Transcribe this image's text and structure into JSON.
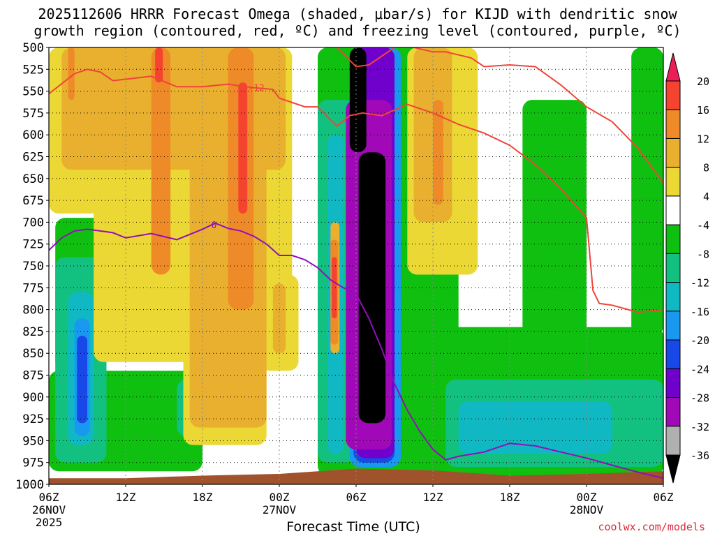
{
  "chart_data": {
    "type": "heatmap",
    "title_line1": "2025112606 HRRR Forecast Omega (shaded, μbar/s) for KIJD with dendritic snow",
    "title_line2": "growth region (contoured, red, ºC) and freezing level (contoured, purple, ºC)",
    "xlabel": "Forecast Time (UTC)",
    "credit": "coolwx.com/models",
    "y_levels": [
      "500",
      "525",
      "550",
      "575",
      "600",
      "625",
      "650",
      "675",
      "700",
      "725",
      "750",
      "775",
      "800",
      "825",
      "850",
      "875",
      "900",
      "925",
      "950",
      "975",
      "1000"
    ],
    "y_values": [
      500,
      525,
      550,
      575,
      600,
      625,
      650,
      675,
      700,
      725,
      750,
      775,
      800,
      825,
      850,
      875,
      900,
      925,
      950,
      975,
      1000
    ],
    "ylim": [
      500,
      1000
    ],
    "xlim": [
      0,
      48
    ],
    "x_ticks": [
      {
        "hour": 0,
        "label": "06Z",
        "sub1": "26NOV",
        "sub2": "2025"
      },
      {
        "hour": 6,
        "label": "12Z",
        "sub1": "",
        "sub2": ""
      },
      {
        "hour": 12,
        "label": "18Z",
        "sub1": "",
        "sub2": ""
      },
      {
        "hour": 18,
        "label": "00Z",
        "sub1": "27NOV",
        "sub2": ""
      },
      {
        "hour": 24,
        "label": "06Z",
        "sub1": "",
        "sub2": ""
      },
      {
        "hour": 30,
        "label": "12Z",
        "sub1": "",
        "sub2": ""
      },
      {
        "hour": 36,
        "label": "18Z",
        "sub1": "",
        "sub2": ""
      },
      {
        "hour": 42,
        "label": "00Z",
        "sub1": "28NOV",
        "sub2": ""
      },
      {
        "hour": 48,
        "label": "06Z",
        "sub1": "",
        "sub2": ""
      }
    ],
    "colorbar": {
      "labels": [
        "20",
        "16",
        "12",
        "8",
        "4",
        "-4",
        "-8",
        "-12",
        "-16",
        "-20",
        "-24",
        "-28",
        "-32",
        "-36"
      ],
      "colors": [
        "#ec1e58",
        "#f4432f",
        "#ee8a28",
        "#e8b02e",
        "#ecd834",
        "#ffffff",
        "#10c010",
        "#12c080",
        "#10b8c4",
        "#1898ee",
        "#1848e8",
        "#7000cc",
        "#a008b8",
        "#b0b0b0",
        "#000000"
      ]
    },
    "regions": [
      {
        "level": -8,
        "x0": 21.0,
        "x1": 32.0,
        "p0": 500,
        "p1": 990
      },
      {
        "level": -8,
        "x0": 0.0,
        "x1": 12.0,
        "p0": 870,
        "p1": 985
      },
      {
        "level": -8,
        "x0": 0.5,
        "x1": 4.5,
        "p0": 695,
        "p1": 870
      },
      {
        "level": -8,
        "x0": 29.0,
        "x1": 48.0,
        "p0": 820,
        "p1": 990
      },
      {
        "level": -8,
        "x0": 37.0,
        "x1": 42.0,
        "p0": 560,
        "p1": 830
      },
      {
        "level": -8,
        "x0": 45.5,
        "x1": 48.0,
        "p0": 500,
        "p1": 830
      },
      {
        "level": -12,
        "x0": 31.0,
        "x1": 48.0,
        "p0": 880,
        "p1": 980
      },
      {
        "level": -12,
        "x0": 0.5,
        "x1": 4.5,
        "p0": 740,
        "p1": 975
      },
      {
        "level": -12,
        "x0": 10.0,
        "x1": 11.5,
        "p0": 880,
        "p1": 945
      },
      {
        "level": -12,
        "x0": 21.0,
        "x1": 24.0,
        "p0": 560,
        "p1": 975
      },
      {
        "level": -16,
        "x0": 32.0,
        "x1": 44.0,
        "p0": 905,
        "p1": 965
      },
      {
        "level": -16,
        "x0": 1.5,
        "x1": 3.5,
        "p0": 780,
        "p1": 955
      },
      {
        "level": -16,
        "x0": 21.8,
        "x1": 23.0,
        "p0": 600,
        "p1": 965
      },
      {
        "level": -20,
        "x0": 2.0,
        "x1": 3.2,
        "p0": 810,
        "p1": 945
      },
      {
        "level": -20,
        "x0": 23.5,
        "x1": 27.5,
        "p0": 500,
        "p1": 980
      },
      {
        "level": -24,
        "x0": 2.2,
        "x1": 3.0,
        "p0": 830,
        "p1": 930
      },
      {
        "level": -24,
        "x0": 23.8,
        "x1": 27.0,
        "p0": 500,
        "p1": 975
      },
      {
        "level": -28,
        "x0": 24.0,
        "x1": 27.0,
        "p0": 500,
        "p1": 970
      },
      {
        "level": -32,
        "x0": 23.2,
        "x1": 26.8,
        "p0": 560,
        "p1": 960
      },
      {
        "level": -36,
        "x0": 23.5,
        "x1": 24.8,
        "p0": 500,
        "p1": 620
      },
      {
        "level": -36,
        "x0": 24.2,
        "x1": 26.3,
        "p0": 620,
        "p1": 930
      },
      {
        "level": 4,
        "x0": 0.0,
        "x1": 8.0,
        "p0": 500,
        "p1": 690
      },
      {
        "level": 4,
        "x0": 3.5,
        "x1": 19.0,
        "p0": 500,
        "p1": 860
      },
      {
        "level": 4,
        "x0": 10.5,
        "x1": 17.0,
        "p0": 500,
        "p1": 955
      },
      {
        "level": 4,
        "x0": 16.5,
        "x1": 19.5,
        "p0": 760,
        "p1": 870
      },
      {
        "level": 4,
        "x0": 28.0,
        "x1": 33.5,
        "p0": 500,
        "p1": 760
      },
      {
        "level": 4,
        "x0": 32.0,
        "x1": 33.0,
        "p0": 500,
        "p1": 600
      },
      {
        "level": 8,
        "x0": 1.0,
        "x1": 18.5,
        "p0": 500,
        "p1": 640
      },
      {
        "level": 8,
        "x0": 11.0,
        "x1": 17.0,
        "p0": 500,
        "p1": 935
      },
      {
        "level": 8,
        "x0": 17.5,
        "x1": 18.5,
        "p0": 770,
        "p1": 850
      },
      {
        "level": 8,
        "x0": 28.5,
        "x1": 31.5,
        "p0": 500,
        "p1": 700
      },
      {
        "level": 8,
        "x0": 22.0,
        "x1": 22.7,
        "p0": 700,
        "p1": 850
      },
      {
        "level": 12,
        "x0": 8.0,
        "x1": 9.5,
        "p0": 500,
        "p1": 760
      },
      {
        "level": 12,
        "x0": 14.0,
        "x1": 16.0,
        "p0": 500,
        "p1": 800
      },
      {
        "level": 12,
        "x0": 1.5,
        "x1": 2.0,
        "p0": 500,
        "p1": 560
      },
      {
        "level": 12,
        "x0": 30.0,
        "x1": 30.8,
        "p0": 560,
        "p1": 680
      },
      {
        "level": 12,
        "x0": 22.0,
        "x1": 22.6,
        "p0": 720,
        "p1": 840
      },
      {
        "level": 16,
        "x0": 14.8,
        "x1": 15.5,
        "p0": 540,
        "p1": 690
      },
      {
        "level": 16,
        "x0": 8.3,
        "x1": 8.9,
        "p0": 500,
        "p1": 540
      },
      {
        "level": 16,
        "x0": 22.1,
        "x1": 22.5,
        "p0": 740,
        "p1": 810
      }
    ],
    "snow_growth_contour": {
      "label": "-12",
      "points": [
        [
          0,
          553
        ],
        [
          2,
          530
        ],
        [
          3,
          525
        ],
        [
          4,
          528
        ],
        [
          5,
          538
        ],
        [
          8,
          533
        ],
        [
          10,
          545
        ],
        [
          12,
          545
        ],
        [
          14,
          542
        ],
        [
          16,
          546
        ],
        [
          17.5,
          548
        ],
        [
          18,
          558
        ],
        [
          20,
          568
        ],
        [
          21,
          568
        ],
        [
          22.5,
          590
        ],
        [
          23.5,
          578
        ],
        [
          24.5,
          575
        ],
        [
          26,
          578
        ],
        [
          28,
          565
        ],
        [
          30,
          575
        ],
        [
          32,
          588
        ],
        [
          34,
          598
        ],
        [
          36,
          612
        ],
        [
          38,
          634
        ],
        [
          40,
          662
        ],
        [
          42,
          695
        ],
        [
          42.5,
          778
        ],
        [
          43,
          793
        ],
        [
          44,
          795
        ],
        [
          46,
          803
        ],
        [
          48,
          800
        ]
      ],
      "segment2": [
        [
          22.5,
          500
        ],
        [
          24,
          522
        ],
        [
          25,
          520
        ],
        [
          26,
          510
        ],
        [
          27,
          500
        ]
      ],
      "segment3": [
        [
          28.5,
          500
        ],
        [
          30,
          505
        ],
        [
          31,
          505
        ],
        [
          33,
          512
        ],
        [
          34,
          522
        ],
        [
          36,
          520
        ],
        [
          38,
          522
        ],
        [
          40,
          543
        ],
        [
          42,
          568
        ],
        [
          44,
          585
        ],
        [
          46,
          615
        ],
        [
          48,
          655
        ]
      ]
    },
    "freezing_contour": {
      "label": "0",
      "points": [
        [
          0,
          732
        ],
        [
          1,
          718
        ],
        [
          2,
          710
        ],
        [
          3,
          708
        ],
        [
          4,
          710
        ],
        [
          5,
          712
        ],
        [
          6,
          718
        ],
        [
          8,
          713
        ],
        [
          10,
          720
        ],
        [
          12,
          708
        ],
        [
          13,
          701
        ],
        [
          14,
          707
        ],
        [
          15,
          710
        ],
        [
          16,
          716
        ],
        [
          17,
          725
        ],
        [
          18,
          738
        ],
        [
          19,
          738
        ],
        [
          20,
          743
        ],
        [
          21,
          752
        ],
        [
          22,
          766
        ],
        [
          23,
          775
        ],
        [
          24,
          782
        ],
        [
          25,
          810
        ],
        [
          26,
          845
        ],
        [
          27,
          885
        ],
        [
          28,
          915
        ],
        [
          29,
          940
        ],
        [
          30,
          960
        ],
        [
          31,
          972
        ],
        [
          32,
          968
        ],
        [
          34,
          963
        ],
        [
          36,
          953
        ],
        [
          38,
          956
        ],
        [
          40,
          963
        ],
        [
          42,
          970
        ],
        [
          44,
          978
        ],
        [
          46,
          986
        ],
        [
          48,
          993
        ]
      ]
    },
    "terrain": [
      [
        0,
        993
      ],
      [
        6,
        993
      ],
      [
        12,
        990
      ],
      [
        18,
        988
      ],
      [
        21,
        985
      ],
      [
        24,
        982
      ],
      [
        30,
        984
      ],
      [
        36,
        990
      ],
      [
        42,
        988
      ],
      [
        48,
        985
      ]
    ]
  }
}
